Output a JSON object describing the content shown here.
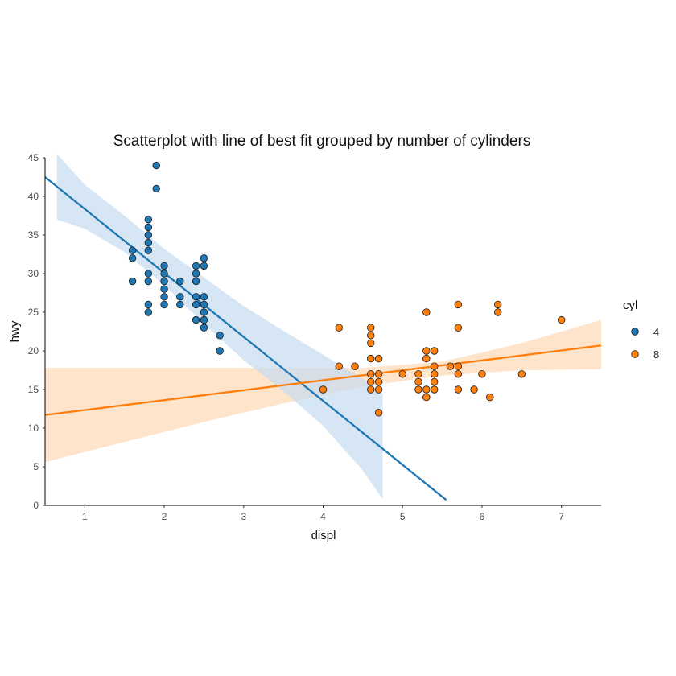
{
  "chart_data": {
    "type": "scatter",
    "title": "Scatterplot with line of best fit grouped by number of cylinders",
    "xlabel": "displ",
    "ylabel": "hwy",
    "xlim": [
      0.5,
      7.5
    ],
    "ylim": [
      0,
      45
    ],
    "xticks": [
      "1",
      "2",
      "3",
      "4",
      "5",
      "6",
      "7"
    ],
    "yticks": [
      "0",
      "5",
      "10",
      "15",
      "20",
      "25",
      "30",
      "35",
      "40",
      "45"
    ],
    "grid": false,
    "legend": {
      "title": "cyl",
      "placement": "right"
    },
    "series": [
      {
        "name": "4",
        "color": "#1f77b4",
        "band_color": "#c6dbef",
        "points": [
          [
            1.6,
            33
          ],
          [
            1.6,
            32
          ],
          [
            1.6,
            29
          ],
          [
            1.8,
            37
          ],
          [
            1.8,
            36
          ],
          [
            1.8,
            35
          ],
          [
            1.8,
            34
          ],
          [
            1.8,
            33
          ],
          [
            1.8,
            30
          ],
          [
            1.8,
            29
          ],
          [
            1.8,
            26
          ],
          [
            1.8,
            25
          ],
          [
            1.9,
            44
          ],
          [
            1.9,
            41
          ],
          [
            2.0,
            31
          ],
          [
            2.0,
            30
          ],
          [
            2.0,
            29
          ],
          [
            2.0,
            28
          ],
          [
            2.0,
            27
          ],
          [
            2.0,
            26
          ],
          [
            2.2,
            29
          ],
          [
            2.2,
            27
          ],
          [
            2.2,
            26
          ],
          [
            2.4,
            31
          ],
          [
            2.4,
            30
          ],
          [
            2.4,
            29
          ],
          [
            2.4,
            27
          ],
          [
            2.4,
            26
          ],
          [
            2.4,
            24
          ],
          [
            2.5,
            32
          ],
          [
            2.5,
            31
          ],
          [
            2.5,
            27
          ],
          [
            2.5,
            26
          ],
          [
            2.5,
            25
          ],
          [
            2.5,
            24
          ],
          [
            2.5,
            23
          ],
          [
            2.7,
            22
          ],
          [
            2.7,
            20
          ]
        ],
        "fit": {
          "x": [
            0.5,
            5.55
          ],
          "y": [
            42.5,
            0.7
          ]
        },
        "band": {
          "x": [
            0.65,
            1.0,
            1.5,
            2.0,
            2.5,
            3.0,
            3.5,
            4.0,
            4.5,
            4.75
          ],
          "upper": [
            45.5,
            41.5,
            37.5,
            33.2,
            29.5,
            25.8,
            22.6,
            19.5,
            16.4,
            14.5
          ],
          "lower": [
            37.0,
            35.8,
            32.8,
            28.5,
            23.5,
            18.8,
            14.8,
            10.3,
            4.5,
            0.8
          ]
        }
      },
      {
        "name": "8",
        "color": "#ff7f0e",
        "band_color": "#fdd9b5",
        "points": [
          [
            4.0,
            15
          ],
          [
            4.2,
            23
          ],
          [
            4.2,
            18
          ],
          [
            4.4,
            18
          ],
          [
            4.6,
            23
          ],
          [
            4.6,
            22
          ],
          [
            4.6,
            21
          ],
          [
            4.6,
            19
          ],
          [
            4.6,
            17
          ],
          [
            4.6,
            16
          ],
          [
            4.6,
            15
          ],
          [
            4.7,
            19
          ],
          [
            4.7,
            17
          ],
          [
            4.7,
            16
          ],
          [
            4.7,
            15
          ],
          [
            4.7,
            12
          ],
          [
            5.0,
            17
          ],
          [
            5.2,
            17
          ],
          [
            5.2,
            16
          ],
          [
            5.2,
            15
          ],
          [
            5.3,
            25
          ],
          [
            5.3,
            20
          ],
          [
            5.3,
            19
          ],
          [
            5.3,
            15
          ],
          [
            5.3,
            14
          ],
          [
            5.4,
            20
          ],
          [
            5.4,
            18
          ],
          [
            5.4,
            17
          ],
          [
            5.4,
            16
          ],
          [
            5.4,
            15
          ],
          [
            5.6,
            18
          ],
          [
            5.7,
            26
          ],
          [
            5.7,
            23
          ],
          [
            5.7,
            18
          ],
          [
            5.7,
            17
          ],
          [
            5.7,
            15
          ],
          [
            5.9,
            15
          ],
          [
            6.0,
            17
          ],
          [
            6.1,
            14
          ],
          [
            6.2,
            26
          ],
          [
            6.2,
            25
          ],
          [
            6.5,
            17
          ],
          [
            7.0,
            24
          ]
        ],
        "fit": {
          "x": [
            0.5,
            7.5
          ],
          "y": [
            11.7,
            20.7
          ]
        },
        "band": {
          "x": [
            0.5,
            1.5,
            2.5,
            3.5,
            4.5,
            5.5,
            6.5,
            7.5
          ],
          "upper": [
            17.8,
            17.8,
            17.8,
            17.8,
            17.8,
            18.6,
            21.0,
            24.0
          ],
          "lower": [
            5.6,
            8.2,
            10.8,
            13.2,
            15.4,
            16.8,
            17.5,
            17.6
          ]
        }
      }
    ]
  }
}
